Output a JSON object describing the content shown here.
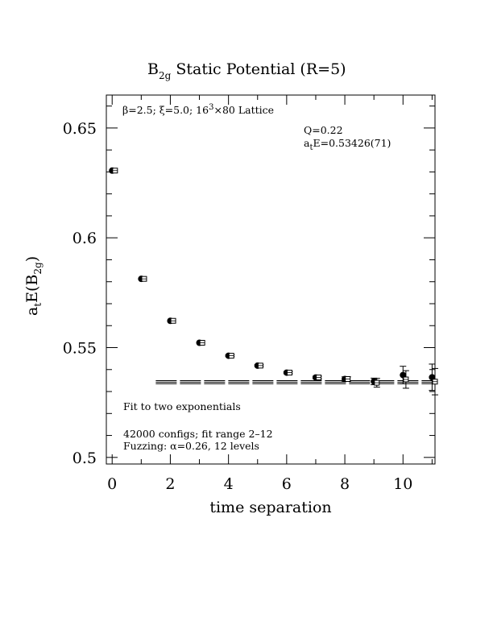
{
  "chart_data": {
    "type": "scatter",
    "title": {
      "prefix": "B",
      "sub": "2g",
      "suffix": " Static Potential (R=5)"
    },
    "xlabel": "time separation",
    "ylabel": {
      "prefix": "a",
      "sub1": "t",
      "mid": "E(B",
      "sub2": "2g",
      "suffix": ")"
    },
    "xlim": [
      -0.2,
      11.1
    ],
    "ylim": [
      0.497,
      0.665
    ],
    "x_ticks": [
      0,
      2,
      4,
      6,
      8,
      10
    ],
    "x_tick_labels": [
      "0",
      "2",
      "4",
      "6",
      "8",
      "10"
    ],
    "y_ticks": [
      0.5,
      0.55,
      0.6,
      0.65
    ],
    "y_tick_labels": [
      "0.5",
      "0.55",
      "0.6",
      "0.65"
    ],
    "annotations": {
      "lattice": {
        "beta": "β=2.5; ξ=5.0; 16",
        "exp": "3",
        "rest": "×80 Lattice"
      },
      "q": "Q=0.22",
      "energy": {
        "prefix": "a",
        "sub": "t",
        "rest": "E=0.53426(71)"
      },
      "fit": "Fit to two exponentials",
      "configs": "42000 configs; fit range 2–12",
      "fuzzing": "Fuzzing: α=0.26, 12 levels"
    },
    "series": [
      {
        "marker": "filled-circle",
        "x": [
          0,
          1,
          2,
          3,
          4,
          5,
          6,
          7,
          8,
          9,
          10,
          11
        ],
        "y": [
          0.6306,
          0.5813,
          0.5622,
          0.5522,
          0.5463,
          0.5418,
          0.5386,
          0.5364,
          0.5357,
          0.5346,
          0.5375,
          0.5365
        ],
        "err": [
          0.0003,
          0.0003,
          0.0003,
          0.0003,
          0.0004,
          0.0004,
          0.0005,
          0.0006,
          0.001,
          0.0015,
          0.004,
          0.006
        ]
      },
      {
        "marker": "open-square",
        "x": [
          0.1,
          1.1,
          2.1,
          3.1,
          4.1,
          5.1,
          6.1,
          7.1,
          8.1,
          9.1,
          10.1,
          11.1
        ],
        "y": [
          0.6306,
          0.5813,
          0.5622,
          0.5522,
          0.5463,
          0.5418,
          0.5386,
          0.5364,
          0.5357,
          0.534,
          0.5355,
          0.5345
        ],
        "err": [
          0.0003,
          0.0003,
          0.0003,
          0.0003,
          0.0004,
          0.0004,
          0.0005,
          0.0006,
          0.001,
          0.002,
          0.004,
          0.006
        ]
      }
    ],
    "fit_band": {
      "x_range": [
        1.5,
        11.1
      ],
      "center": 0.53426,
      "error": 0.00071
    }
  }
}
